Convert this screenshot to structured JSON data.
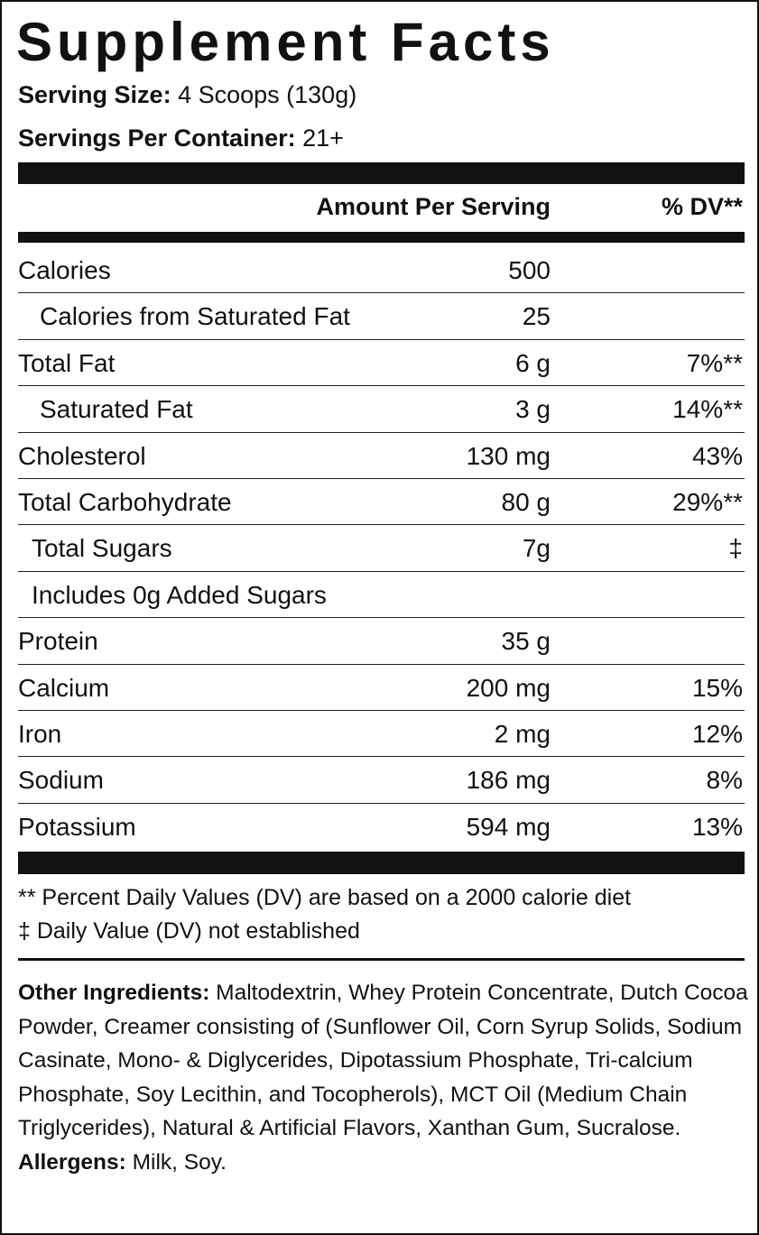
{
  "header": {
    "title": "Supplement Facts",
    "serving_size": {
      "label": "Serving Size:",
      "value": "4 Scoops (130g)"
    },
    "servings_per_container": {
      "label": "Servings Per Container:",
      "value": "21+"
    }
  },
  "table": {
    "columns": {
      "amount": "Amount Per Serving",
      "dv": "% DV**"
    },
    "rows": [
      {
        "name": "Calories",
        "amount": "500"
      },
      {
        "name": "Calories from Saturated Fat",
        "amount": "25"
      },
      {
        "name": "Total Fat",
        "amount": "6 g",
        "dv": "7%**"
      },
      {
        "name": "Saturated Fat",
        "amount": "3 g",
        "dv": "14%**"
      },
      {
        "name": "Cholesterol",
        "amount": "130 mg",
        "dv": "43%"
      },
      {
        "name": "Total Carbohydrate",
        "amount": "80 g",
        "dv": "29%**"
      },
      {
        "name": "Total Sugars",
        "amount": "7g",
        "dv": "‡"
      },
      {
        "name": "Includes 0g Added Sugars"
      },
      {
        "name": "Protein",
        "amount": "35 g"
      },
      {
        "name": "Calcium",
        "amount": "200 mg",
        "dv": "15%"
      },
      {
        "name": "Iron",
        "amount": "2 mg",
        "dv": "12%"
      },
      {
        "name": "Sodium",
        "amount": "186 mg",
        "dv": "8%"
      },
      {
        "name": "Potassium",
        "amount": "594 mg",
        "dv": "13%"
      }
    ]
  },
  "footnotes": [
    "** Percent Daily Values (DV) are based on a 2000 calorie diet",
    "‡ Daily Value (DV) not established"
  ],
  "ingredients": {
    "label": "Other Ingredients:",
    "text": "Maltodextrin, Whey Protein Concentrate, Dutch Cocoa Powder, Creamer consisting of (Sunflower Oil, Corn Syrup Solids, Sodium Casinate, Mono- & Diglycerides, Dipotassium Phosphate, Tri-calcium Phosphate, Soy Lecithin, and Tocopherols), MCT Oil (Medium Chain Triglycerides), Natural & Artificial Flavors, Xanthan Gum, Sucralose."
  },
  "allergens": {
    "label": "Allergens:",
    "text": "Milk, Soy."
  }
}
